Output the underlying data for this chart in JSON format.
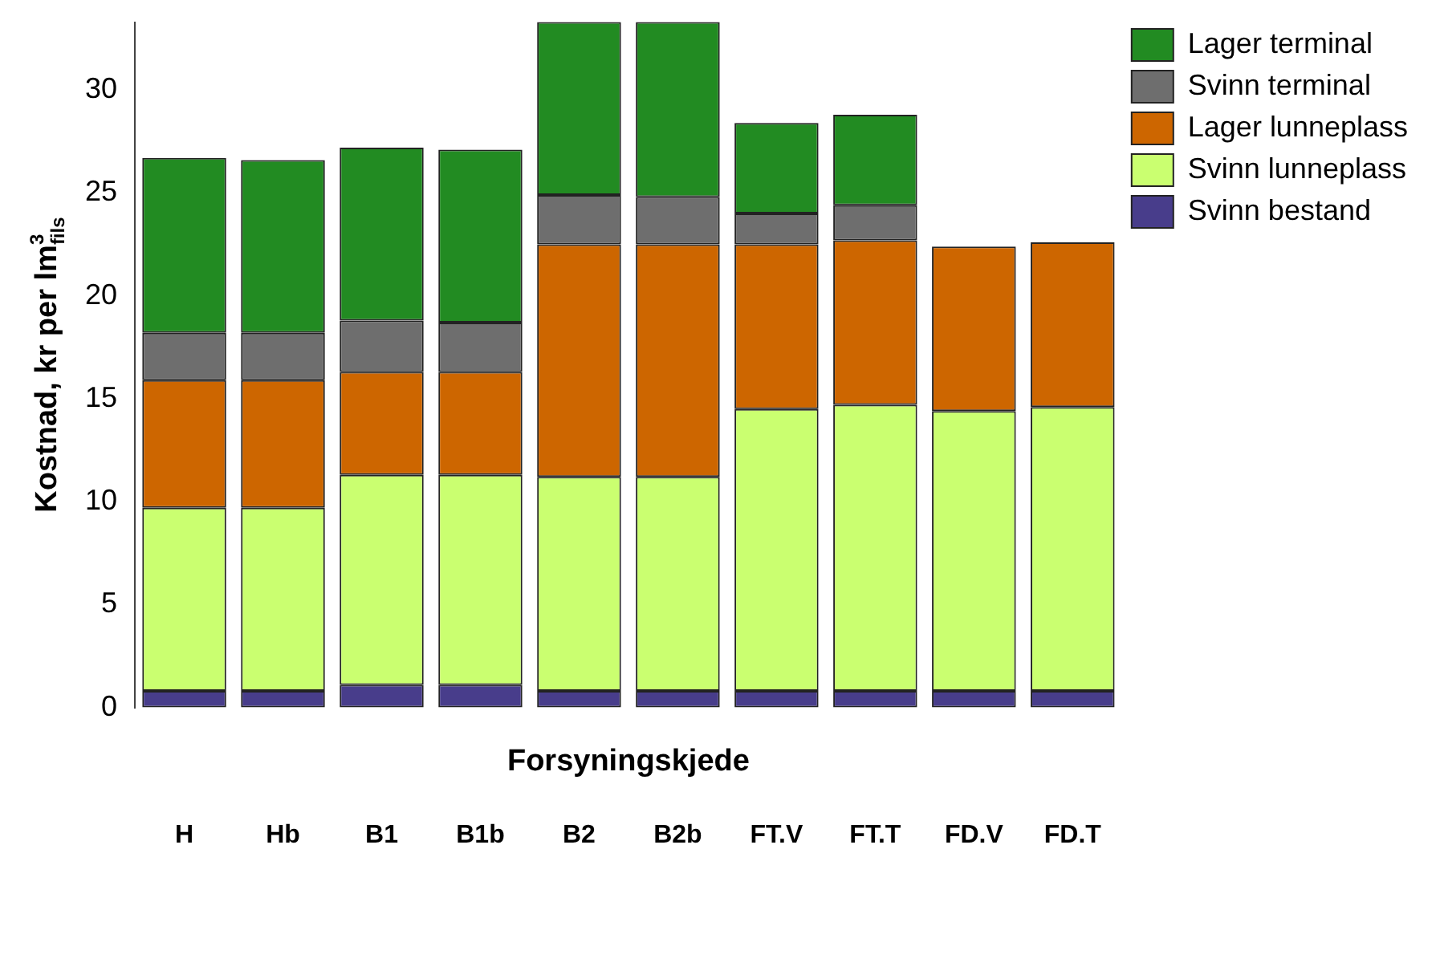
{
  "chart_data": {
    "type": "bar",
    "stacked": true,
    "xlabel": "Forsyningskjede",
    "ylabel": "Kostnad, kr per lm$^{3}$$_{fils}$",
    "categories": [
      "H",
      "Hb",
      "B1",
      "B1b",
      "B2",
      "B2b",
      "FT.V",
      "FT.T",
      "FD.V",
      "FD.T"
    ],
    "series": [
      {
        "name": "Svinn bestand",
        "color": "#483d8b",
        "values": [
          0.8,
          0.8,
          1.1,
          1.1,
          0.8,
          0.8,
          0.8,
          0.8,
          0.8,
          0.8
        ]
      },
      {
        "name": "Svinn lunneplass",
        "color": "#caff70",
        "values": [
          8.9,
          8.9,
          10.2,
          10.2,
          10.4,
          10.4,
          13.7,
          13.9,
          13.6,
          13.8
        ]
      },
      {
        "name": "Lager lunneplass",
        "color": "#cd6600",
        "values": [
          6.2,
          6.2,
          5.0,
          5.0,
          11.3,
          11.3,
          8.0,
          8.0,
          8.0,
          8.0
        ]
      },
      {
        "name": "Svinn terminal",
        "color": "#6e6e6e",
        "values": [
          2.3,
          2.3,
          2.5,
          2.4,
          2.4,
          2.3,
          1.5,
          1.7,
          null,
          null
        ]
      },
      {
        "name": "Lager terminal",
        "color": "#228b22",
        "values": [
          8.5,
          8.4,
          8.4,
          8.4,
          8.4,
          8.5,
          4.4,
          4.4,
          null,
          null
        ]
      }
    ],
    "ylim": [
      0,
      33.3
    ],
    "yticks": [
      0,
      5,
      10,
      15,
      20,
      25,
      30
    ],
    "grid": false,
    "legend": "top right"
  }
}
